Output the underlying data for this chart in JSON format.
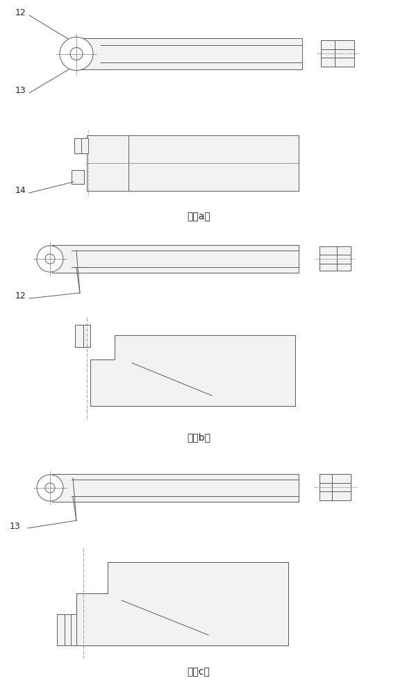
{
  "bg_color": "#ffffff",
  "line_color": "#5a5a5a",
  "dash_color": "#7a7a7a",
  "label_color": "#222222",
  "fig_width": 5.73,
  "fig_height": 10.0,
  "dpi": 100,
  "caption_a": "图（a）",
  "caption_b": "图（b）",
  "caption_c": "图（c）"
}
